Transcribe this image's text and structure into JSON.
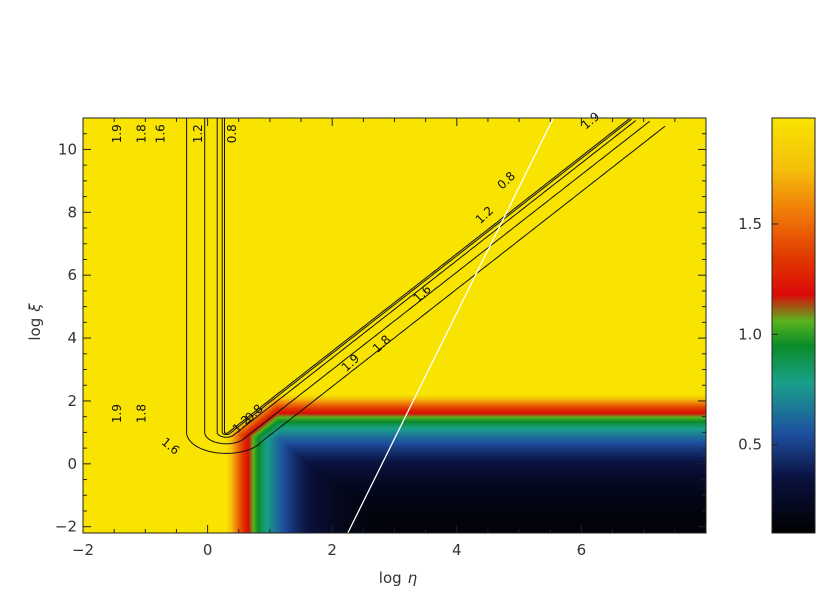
{
  "chart_data": {
    "type": "heatmap",
    "title": "",
    "xlabel": "log",
    "xlabel_symbol": "η",
    "ylabel": "log",
    "ylabel_symbol": "ξ",
    "xlim": [
      -2,
      8
    ],
    "ylim": [
      -2.2,
      11
    ],
    "xticks": [
      "−2",
      "0",
      "2",
      "4",
      "6"
    ],
    "xtick_values": [
      -2,
      0,
      2,
      4,
      6
    ],
    "yticks": [
      "−2",
      "0",
      "2",
      "4",
      "6",
      "8",
      "10"
    ],
    "ytick_values": [
      -2,
      0,
      2,
      4,
      6,
      8,
      10
    ],
    "colorbar": {
      "range": [
        0.1,
        1.98
      ],
      "ticks": [
        "0.5",
        "1.0",
        "1.5"
      ],
      "tick_values": [
        0.5,
        1.0,
        1.5
      ],
      "colors": [
        {
          "value": 0.1,
          "color": "#000000"
        },
        {
          "value": 0.35,
          "color": "#0a1240"
        },
        {
          "value": 0.55,
          "color": "#1e50a0"
        },
        {
          "value": 0.78,
          "color": "#1aa08c"
        },
        {
          "value": 0.95,
          "color": "#0a8c28"
        },
        {
          "value": 1.06,
          "color": "#5ab41e"
        },
        {
          "value": 1.18,
          "color": "#dc0a0a"
        },
        {
          "value": 1.35,
          "color": "#e03a00"
        },
        {
          "value": 1.55,
          "color": "#f07a08"
        },
        {
          "value": 1.75,
          "color": "#f5c00a"
        },
        {
          "value": 1.98,
          "color": "#f8e400"
        }
      ]
    },
    "valley": {
      "vertex": [
        0.3,
        1.0
      ],
      "line_slope": 1.55,
      "min_value": 0.1,
      "max_value": 1.98
    },
    "contours": [
      {
        "level": 0.8,
        "label": "0.8",
        "label_points": [
          [
            0.75,
            1.6,
            -43
          ],
          [
            0.4,
            10.5,
            -90
          ],
          [
            4.8,
            9.0,
            -43
          ]
        ]
      },
      {
        "level": 1.2,
        "label": "1.2",
        "label_points": [
          [
            0.55,
            1.25,
            -43
          ],
          [
            -0.15,
            10.5,
            -90
          ],
          [
            4.45,
            7.9,
            -43
          ]
        ]
      },
      {
        "level": 1.6,
        "label": "1.6",
        "label_points": [
          [
            -0.6,
            0.55,
            40
          ],
          [
            -0.75,
            10.5,
            -90
          ],
          [
            3.45,
            5.4,
            -43
          ]
        ]
      },
      {
        "level": 1.8,
        "label": "1.8",
        "label_points": [
          [
            -1.05,
            1.6,
            -90
          ],
          [
            -1.05,
            10.5,
            -90
          ],
          [
            2.8,
            3.8,
            -43
          ]
        ]
      },
      {
        "level": 1.9,
        "label": "1.9",
        "label_points": [
          [
            -1.45,
            1.6,
            -90
          ],
          [
            -1.45,
            10.5,
            -90
          ],
          [
            2.3,
            3.2,
            -43
          ],
          [
            6.15,
            10.9,
            -40
          ]
        ]
      }
    ],
    "overlay_line": {
      "color": "#ffffff",
      "points": [
        [
          2.25,
          -2.2
        ],
        [
          5.55,
          11
        ]
      ]
    }
  }
}
